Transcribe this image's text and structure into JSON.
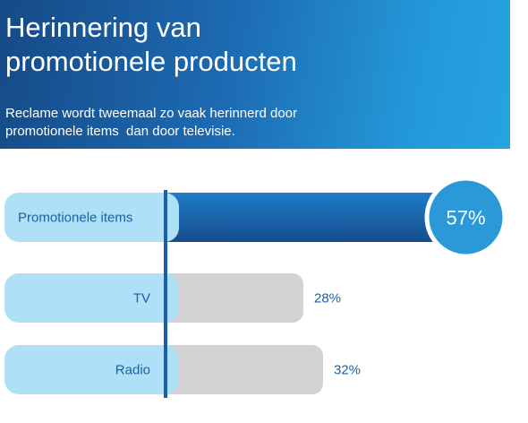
{
  "header": {
    "title_lines": [
      "Herinnering van",
      "promotionele producten"
    ],
    "subtitle_lines": [
      "Reclame wordt tweemaal zo vaak herinnerd door",
      "promotionele items  dan door televisie."
    ]
  },
  "colors": {
    "header_start": "#154a86",
    "header_end": "#27a3e0",
    "label_pill": "#aee0f8",
    "highlight_bar": "#1a6cb5",
    "grey_bar": "#d3d3d3",
    "badge": "#2b98d8",
    "text_blue": "#1f5f9c"
  },
  "chart_data": {
    "type": "bar",
    "orientation": "horizontal",
    "categories": [
      "Promotionele items",
      "TV",
      "Radio"
    ],
    "values": [
      57,
      28,
      32
    ],
    "value_labels": [
      "57%",
      "28%",
      "32%"
    ],
    "highlighted_category": "Promotionele items",
    "xlim": [
      0,
      60
    ],
    "grid": false
  }
}
